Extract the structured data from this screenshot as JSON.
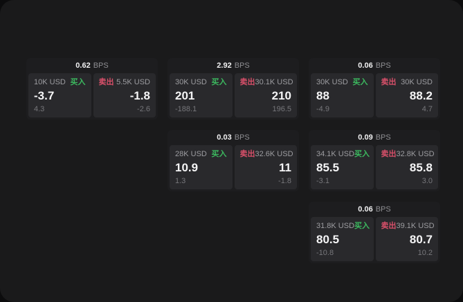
{
  "labels": {
    "buy": "买入",
    "sell": "卖出",
    "bps_unit": "BPS"
  },
  "colors": {
    "buy_green": "#3cb95f",
    "sell_red": "#d9506a",
    "panel_bg": "#29292c",
    "card_bg": "#1d1d1f",
    "frame_bg": "#1a1a1b"
  },
  "cards": [
    {
      "bps": "0.62",
      "buy": {
        "amount": "10K USD",
        "value": "-3.7",
        "sub": "4.3"
      },
      "sell": {
        "amount": "5.5K USD",
        "value": "-1.8",
        "sub": "-2.6"
      }
    },
    {
      "bps": "2.92",
      "buy": {
        "amount": "30K USD",
        "value": "201",
        "sub": "-188.1"
      },
      "sell": {
        "amount": "30.1K USD",
        "value": "210",
        "sub": "196.5"
      }
    },
    {
      "bps": "0.06",
      "buy": {
        "amount": "30K USD",
        "value": "88",
        "sub": "-4.9"
      },
      "sell": {
        "amount": "30K USD",
        "value": "88.2",
        "sub": "4.7"
      }
    },
    {
      "bps": "0.03",
      "buy": {
        "amount": "28K USD",
        "value": "10.9",
        "sub": "1.3"
      },
      "sell": {
        "amount": "32.6K USD",
        "value": "11",
        "sub": "-1.8"
      }
    },
    {
      "bps": "0.09",
      "buy": {
        "amount": "34.1K USD",
        "value": "85.5",
        "sub": "-3.1"
      },
      "sell": {
        "amount": "32.8K USD",
        "value": "85.8",
        "sub": "3.0"
      }
    },
    {
      "bps": "0.06",
      "buy": {
        "amount": "31.8K USD",
        "value": "80.5",
        "sub": "-10.8"
      },
      "sell": {
        "amount": "39.1K USD",
        "value": "80.7",
        "sub": "10.2"
      }
    }
  ]
}
